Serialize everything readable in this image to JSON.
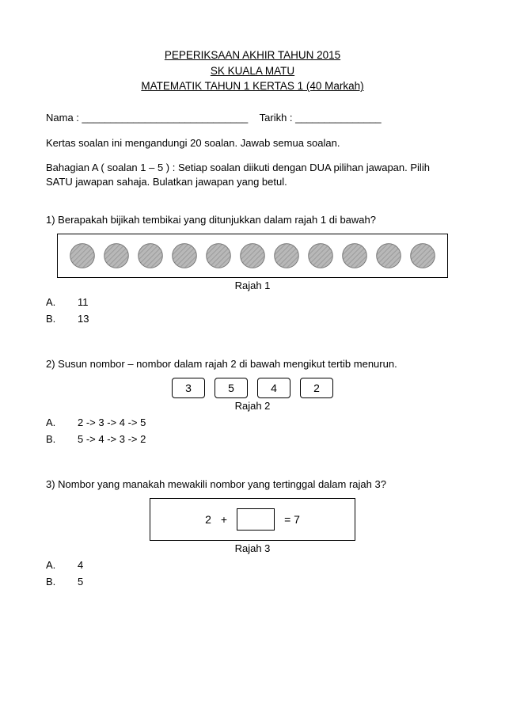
{
  "header": {
    "line1": "PEPERIKSAAN AKHIR TAHUN 2015",
    "line2": "SK KUALA MATU",
    "line3": "MATEMATIK TAHUN 1 KERTAS 1 (40 Markah)"
  },
  "name_row": {
    "nama_label": "Nama : ",
    "nama_blank": "_____________________________",
    "gap": "    ",
    "tarikh_label": "Tarikh : ",
    "tarikh_blank": "_______________"
  },
  "instructions": {
    "line1": "Kertas soalan ini mengandungi  20 soalan. Jawab semua soalan.",
    "line2": "Bahagian A ( soalan 1 – 5 ) : Setiap soalan diikuti dengan  DUA pilihan jawapan. Pilih SATU jawapan sahaja.  Bulatkan jawapan yang betul."
  },
  "q1": {
    "text": "1) Berapakah bijikah tembikai yang ditunjukkan dalam rajah 1 di bawah?",
    "seed_count": 11,
    "caption": "Rajah 1",
    "optA_letter": "A.",
    "optA_value": "11",
    "optB_letter": "B.",
    "optB_value": "13",
    "seed_style": {
      "fill": "#b8b8b8",
      "hatch_stroke": "#8a8a8a",
      "outline": "#707070"
    }
  },
  "q2": {
    "text": "2) Susun nombor – nombor dalam rajah 2 di bawah mengikut  tertib menurun.",
    "boxes": [
      "3",
      "5",
      "4",
      "2"
    ],
    "caption": "Rajah 2",
    "optA_letter": "A.",
    "optA_value": "2 -> 3 -> 4 -> 5",
    "optB_letter": "B.",
    "optB_value": "5 -> 4 -> 3 -> 2"
  },
  "q3": {
    "text": "3)  Nombor yang manakah mewakili nombor yang tertinggal  dalam rajah 3?",
    "eq_left": "2",
    "eq_op": "+",
    "eq_right": "= 7",
    "caption": "Rajah 3",
    "optA_letter": "A.",
    "optA_value": "4",
    "optB_letter": "B.",
    "optB_value": "5"
  }
}
